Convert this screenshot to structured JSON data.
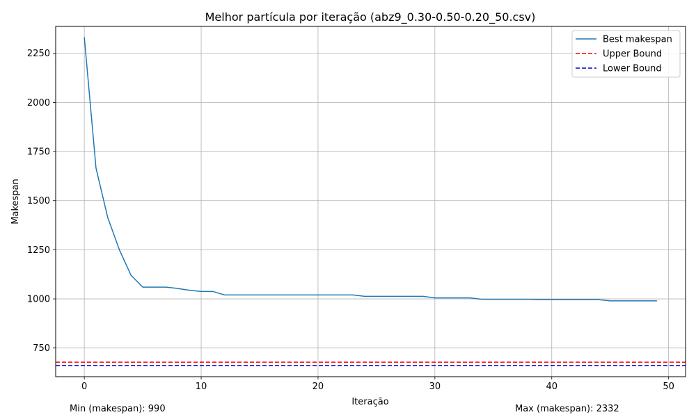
{
  "chart_data": {
    "type": "line",
    "title": "Melhor partícula por iteração (abz9_0.30-0.50-0.20_50.csv)",
    "xlabel": "Iteração",
    "ylabel": "Makespan",
    "xlim": [
      -2.45,
      51.45
    ],
    "ylim": [
      604,
      2387
    ],
    "xticks": [
      0,
      10,
      20,
      30,
      40,
      50
    ],
    "yticks": [
      750,
      1000,
      1250,
      1500,
      1750,
      2000,
      2250
    ],
    "grid": true,
    "legend_position": "top-right",
    "series": [
      {
        "name": "Best makespan",
        "color": "#1f77b4",
        "style": "solid",
        "x": [
          0,
          1,
          2,
          3,
          4,
          5,
          6,
          7,
          8,
          9,
          10,
          11,
          12,
          13,
          14,
          15,
          16,
          17,
          18,
          19,
          20,
          21,
          22,
          23,
          24,
          25,
          26,
          27,
          28,
          29,
          30,
          31,
          32,
          33,
          34,
          35,
          36,
          37,
          38,
          39,
          40,
          41,
          42,
          43,
          44,
          45,
          46,
          47,
          48,
          49
        ],
        "values": [
          2332,
          1666,
          1415,
          1250,
          1120,
          1060,
          1060,
          1060,
          1053,
          1044,
          1038,
          1038,
          1020,
          1020,
          1020,
          1020,
          1020,
          1020,
          1020,
          1020,
          1020,
          1020,
          1020,
          1020,
          1013,
          1013,
          1013,
          1013,
          1013,
          1013,
          1005,
          1005,
          1005,
          1005,
          998,
          998,
          998,
          998,
          998,
          996,
          996,
          996,
          996,
          996,
          996,
          990,
          990,
          990,
          990,
          990
        ]
      },
      {
        "name": "Upper Bound",
        "color": "#ff0000",
        "style": "dashed",
        "constant": 678
      },
      {
        "name": "Lower Bound",
        "color": "#0000cc",
        "style": "dashed",
        "constant": 661
      }
    ]
  },
  "footer": {
    "min_text": "Min (makespan): 990",
    "max_text": "Max (makespan): 2332"
  }
}
